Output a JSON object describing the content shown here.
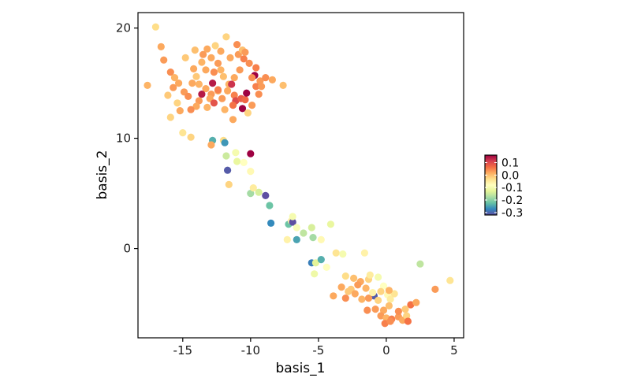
{
  "chart_data": {
    "type": "scatter",
    "title": "",
    "xlabel": "basis_1",
    "ylabel": "basis_2",
    "xlim": [
      -18.3,
      5.7
    ],
    "ylim": [
      -8.1,
      21.4
    ],
    "x_ticks": [
      -15,
      -10,
      -5,
      0,
      5
    ],
    "y_ticks": [
      0,
      10,
      20
    ],
    "x_tick_labels": [
      "-15",
      "-10",
      "-5",
      "0",
      "5"
    ],
    "y_tick_labels": [
      "0",
      "10",
      "20"
    ],
    "grid": false,
    "legend": {
      "placement": "right",
      "type": "colorbar",
      "range": [
        -0.32,
        0.16
      ],
      "ticks": [
        0.1,
        0.0,
        -0.1,
        -0.2,
        -0.3
      ],
      "tick_labels": [
        "0.1",
        "0.0",
        "-0.1",
        "-0.2",
        "-0.3"
      ]
    },
    "colormap": [
      "#5e4fa2",
      "#3288bd",
      "#66c2a5",
      "#abdda4",
      "#e6f598",
      "#ffffbf",
      "#fee08b",
      "#fdae61",
      "#f46d43",
      "#d53e4f",
      "#9e0142"
    ],
    "points": [
      {
        "x": -17.0,
        "y": 20.1,
        "v": -0.03
      },
      {
        "x": -16.6,
        "y": 18.3,
        "v": 0.02
      },
      {
        "x": -17.6,
        "y": 14.8,
        "v": 0.01
      },
      {
        "x": -16.4,
        "y": 17.1,
        "v": 0.03
      },
      {
        "x": -15.9,
        "y": 16.0,
        "v": 0.04
      },
      {
        "x": -15.3,
        "y": 15.0,
        "v": 0.02
      },
      {
        "x": -15.6,
        "y": 15.5,
        "v": 0.01
      },
      {
        "x": -16.1,
        "y": 13.9,
        "v": -0.01
      },
      {
        "x": -15.7,
        "y": 14.6,
        "v": 0.03
      },
      {
        "x": -15.4,
        "y": 13.2,
        "v": -0.02
      },
      {
        "x": -14.9,
        "y": 14.2,
        "v": 0.03
      },
      {
        "x": -14.6,
        "y": 13.8,
        "v": 0.04
      },
      {
        "x": -14.3,
        "y": 15.0,
        "v": 0.02
      },
      {
        "x": -14.0,
        "y": 15.6,
        "v": -0.01
      },
      {
        "x": -13.8,
        "y": 14.9,
        "v": 0.01
      },
      {
        "x": -14.2,
        "y": 16.3,
        "v": 0.02
      },
      {
        "x": -13.6,
        "y": 16.9,
        "v": 0.01
      },
      {
        "x": -14.8,
        "y": 17.3,
        "v": -0.01
      },
      {
        "x": -14.1,
        "y": 18.0,
        "v": 0.0
      },
      {
        "x": -13.5,
        "y": 17.6,
        "v": 0.03
      },
      {
        "x": -13.2,
        "y": 18.1,
        "v": 0.02
      },
      {
        "x": -12.6,
        "y": 18.4,
        "v": -0.02
      },
      {
        "x": -12.9,
        "y": 17.3,
        "v": 0.02
      },
      {
        "x": -12.4,
        "y": 16.8,
        "v": 0.03
      },
      {
        "x": -12.7,
        "y": 16.0,
        "v": 0.04
      },
      {
        "x": -13.3,
        "y": 16.2,
        "v": 0.02
      },
      {
        "x": -12.2,
        "y": 16.2,
        "v": 0.01
      },
      {
        "x": -11.8,
        "y": 19.2,
        "v": -0.02
      },
      {
        "x": -11.5,
        "y": 17.3,
        "v": 0.02
      },
      {
        "x": -10.9,
        "y": 17.6,
        "v": 0.03
      },
      {
        "x": -11.0,
        "y": 18.5,
        "v": 0.04
      },
      {
        "x": -10.5,
        "y": 17.2,
        "v": 0.05
      },
      {
        "x": -10.1,
        "y": 16.8,
        "v": 0.04
      },
      {
        "x": -9.6,
        "y": 16.4,
        "v": 0.05
      },
      {
        "x": -10.8,
        "y": 16.2,
        "v": 0.03
      },
      {
        "x": -11.2,
        "y": 15.5,
        "v": 0.02
      },
      {
        "x": -11.6,
        "y": 14.9,
        "v": 0.01
      },
      {
        "x": -12.0,
        "y": 15.6,
        "v": 0.0
      },
      {
        "x": -12.4,
        "y": 14.3,
        "v": 0.02
      },
      {
        "x": -12.8,
        "y": 15.0,
        "v": 0.14
      },
      {
        "x": -12.9,
        "y": 14.0,
        "v": 0.03
      },
      {
        "x": -13.0,
        "y": 13.6,
        "v": 0.02
      },
      {
        "x": -13.3,
        "y": 14.5,
        "v": 0.02
      },
      {
        "x": -13.6,
        "y": 14.0,
        "v": 0.14
      },
      {
        "x": -13.8,
        "y": 13.4,
        "v": 0.03
      },
      {
        "x": -14.0,
        "y": 12.9,
        "v": 0.02
      },
      {
        "x": -14.4,
        "y": 12.6,
        "v": 0.04
      },
      {
        "x": -13.2,
        "y": 12.8,
        "v": 0.01
      },
      {
        "x": -12.7,
        "y": 13.2,
        "v": 0.09
      },
      {
        "x": -12.1,
        "y": 13.6,
        "v": 0.03
      },
      {
        "x": -11.7,
        "y": 14.3,
        "v": 0.02
      },
      {
        "x": -11.4,
        "y": 14.9,
        "v": 0.12
      },
      {
        "x": -11.2,
        "y": 13.9,
        "v": 0.05
      },
      {
        "x": -11.1,
        "y": 13.4,
        "v": 0.1
      },
      {
        "x": -11.3,
        "y": 13.0,
        "v": 0.06
      },
      {
        "x": -10.7,
        "y": 13.6,
        "v": 0.08
      },
      {
        "x": -10.4,
        "y": 13.5,
        "v": 0.07
      },
      {
        "x": -10.3,
        "y": 14.1,
        "v": 0.16
      },
      {
        "x": -10.6,
        "y": 12.7,
        "v": 0.16
      },
      {
        "x": -9.9,
        "y": 13.0,
        "v": 0.03
      },
      {
        "x": -9.6,
        "y": 14.7,
        "v": 0.05
      },
      {
        "x": -9.2,
        "y": 14.7,
        "v": 0.03
      },
      {
        "x": -9.7,
        "y": 15.7,
        "v": 0.16
      },
      {
        "x": -9.9,
        "y": 15.5,
        "v": 0.04
      },
      {
        "x": -9.3,
        "y": 15.2,
        "v": 0.03
      },
      {
        "x": -8.9,
        "y": 15.5,
        "v": 0.04
      },
      {
        "x": -8.4,
        "y": 15.3,
        "v": 0.02
      },
      {
        "x": -9.4,
        "y": 14.0,
        "v": 0.04
      },
      {
        "x": -10.2,
        "y": 12.3,
        "v": -0.02
      },
      {
        "x": -7.6,
        "y": 14.8,
        "v": 0.0
      },
      {
        "x": -11.9,
        "y": 12.6,
        "v": 0.01
      },
      {
        "x": -11.3,
        "y": 11.7,
        "v": 0.02
      },
      {
        "x": -15.2,
        "y": 12.5,
        "v": 0.02
      },
      {
        "x": -15.9,
        "y": 11.9,
        "v": -0.02
      },
      {
        "x": -15.0,
        "y": 10.5,
        "v": -0.04
      },
      {
        "x": -14.4,
        "y": 10.1,
        "v": -0.02
      },
      {
        "x": -12.4,
        "y": 14.4,
        "v": 0.05
      },
      {
        "x": -12.2,
        "y": 17.9,
        "v": 0.02
      },
      {
        "x": -10.6,
        "y": 18.0,
        "v": 0.0
      },
      {
        "x": -10.4,
        "y": 17.8,
        "v": 0.03
      },
      {
        "x": -12.8,
        "y": 9.8,
        "v": -0.24
      },
      {
        "x": -12.0,
        "y": 9.8,
        "v": -0.03
      },
      {
        "x": -11.9,
        "y": 9.6,
        "v": -0.26
      },
      {
        "x": -12.9,
        "y": 9.4,
        "v": 0.02
      },
      {
        "x": -11.8,
        "y": 8.4,
        "v": -0.15
      },
      {
        "x": -11.1,
        "y": 8.7,
        "v": -0.1
      },
      {
        "x": -11.0,
        "y": 7.9,
        "v": -0.12
      },
      {
        "x": -11.7,
        "y": 7.1,
        "v": -0.31
      },
      {
        "x": -10.0,
        "y": 8.6,
        "v": 0.16
      },
      {
        "x": -10.5,
        "y": 7.8,
        "v": -0.08
      },
      {
        "x": -10.0,
        "y": 7.0,
        "v": -0.07
      },
      {
        "x": -11.6,
        "y": 5.8,
        "v": -0.02
      },
      {
        "x": -10.0,
        "y": 5.0,
        "v": -0.18
      },
      {
        "x": -9.8,
        "y": 5.5,
        "v": -0.05
      },
      {
        "x": -9.4,
        "y": 5.1,
        "v": -0.14
      },
      {
        "x": -8.9,
        "y": 4.8,
        "v": -0.34
      },
      {
        "x": -8.6,
        "y": 3.9,
        "v": -0.22
      },
      {
        "x": -8.5,
        "y": 2.3,
        "v": -0.27
      },
      {
        "x": -7.2,
        "y": 2.2,
        "v": -0.22
      },
      {
        "x": -7.0,
        "y": 2.5,
        "v": -0.06
      },
      {
        "x": -6.9,
        "y": 2.4,
        "v": -0.34
      },
      {
        "x": -6.6,
        "y": 1.9,
        "v": -0.09
      },
      {
        "x": -6.1,
        "y": 1.4,
        "v": -0.16
      },
      {
        "x": -5.5,
        "y": 1.9,
        "v": -0.14
      },
      {
        "x": -5.4,
        "y": 1.0,
        "v": -0.18
      },
      {
        "x": -4.8,
        "y": 0.8,
        "v": -0.07
      },
      {
        "x": -4.1,
        "y": 2.2,
        "v": -0.12
      },
      {
        "x": -7.3,
        "y": 0.8,
        "v": -0.06
      },
      {
        "x": -6.6,
        "y": 0.8,
        "v": -0.25
      },
      {
        "x": -5.5,
        "y": -1.3,
        "v": -0.28
      },
      {
        "x": -5.2,
        "y": -1.3,
        "v": -0.13
      },
      {
        "x": -4.8,
        "y": -1.0,
        "v": -0.24
      },
      {
        "x": -5.3,
        "y": -2.3,
        "v": -0.11
      },
      {
        "x": -3.7,
        "y": -0.4,
        "v": -0.04
      },
      {
        "x": -3.2,
        "y": -0.5,
        "v": -0.1
      },
      {
        "x": -1.6,
        "y": -0.4,
        "v": -0.06
      },
      {
        "x": 2.5,
        "y": -1.4,
        "v": -0.16
      },
      {
        "x": 4.7,
        "y": -2.9,
        "v": -0.04
      },
      {
        "x": -3.0,
        "y": -2.5,
        "v": -0.03
      },
      {
        "x": -2.4,
        "y": -2.7,
        "v": 0.0
      },
      {
        "x": -1.9,
        "y": -3.0,
        "v": 0.02
      },
      {
        "x": -1.3,
        "y": -2.8,
        "v": -0.02
      },
      {
        "x": -1.2,
        "y": -2.4,
        "v": -0.05
      },
      {
        "x": -0.6,
        "y": -2.6,
        "v": -0.1
      },
      {
        "x": -0.2,
        "y": -3.4,
        "v": -0.08
      },
      {
        "x": -0.4,
        "y": -3.9,
        "v": -0.02
      },
      {
        "x": -0.9,
        "y": -4.3,
        "v": -0.31
      },
      {
        "x": -1.5,
        "y": -3.6,
        "v": 0.01
      },
      {
        "x": -2.1,
        "y": -3.3,
        "v": 0.03
      },
      {
        "x": -2.6,
        "y": -3.7,
        "v": -0.01
      },
      {
        "x": -3.3,
        "y": -3.5,
        "v": 0.02
      },
      {
        "x": -3.0,
        "y": -4.5,
        "v": 0.04
      },
      {
        "x": -2.3,
        "y": -4.1,
        "v": 0.02
      },
      {
        "x": -1.8,
        "y": -4.6,
        "v": 0.01
      },
      {
        "x": -1.3,
        "y": -4.5,
        "v": 0.03
      },
      {
        "x": -0.6,
        "y": -4.7,
        "v": -0.02
      },
      {
        "x": 0.1,
        "y": -4.2,
        "v": -0.07
      },
      {
        "x": 0.3,
        "y": -4.6,
        "v": -0.05
      },
      {
        "x": 0.6,
        "y": -4.1,
        "v": -0.04
      },
      {
        "x": 0.2,
        "y": -5.2,
        "v": 0.0
      },
      {
        "x": -0.2,
        "y": -5.6,
        "v": 0.02
      },
      {
        "x": -0.8,
        "y": -5.5,
        "v": 0.03
      },
      {
        "x": -1.4,
        "y": -5.6,
        "v": 0.04
      },
      {
        "x": -0.4,
        "y": -6.1,
        "v": 0.03
      },
      {
        "x": 0.0,
        "y": -6.3,
        "v": 0.01
      },
      {
        "x": 0.4,
        "y": -6.4,
        "v": 0.05
      },
      {
        "x": 0.9,
        "y": -6.2,
        "v": 0.03
      },
      {
        "x": 1.2,
        "y": -6.5,
        "v": 0.02
      },
      {
        "x": 1.5,
        "y": -6.1,
        "v": -0.02
      },
      {
        "x": 1.6,
        "y": -6.6,
        "v": 0.06
      },
      {
        "x": 1.8,
        "y": -5.1,
        "v": 0.06
      },
      {
        "x": 2.2,
        "y": -4.9,
        "v": 0.02
      },
      {
        "x": 3.6,
        "y": -3.7,
        "v": 0.03
      },
      {
        "x": 0.9,
        "y": -5.7,
        "v": 0.04
      },
      {
        "x": -0.1,
        "y": -6.8,
        "v": 0.05
      },
      {
        "x": -3.9,
        "y": -4.3,
        "v": 0.02
      },
      {
        "x": -2.8,
        "y": -3.9,
        "v": -0.01
      },
      {
        "x": 0.2,
        "y": -3.8,
        "v": 0.01
      },
      {
        "x": -4.4,
        "y": -1.7,
        "v": -0.08
      },
      {
        "x": -6.9,
        "y": 2.9,
        "v": -0.1
      },
      {
        "x": 0.3,
        "y": -6.6,
        "v": 0.04
      },
      {
        "x": -1.0,
        "y": -4.0,
        "v": -0.06
      },
      {
        "x": 1.4,
        "y": -5.5,
        "v": -0.01
      }
    ]
  }
}
